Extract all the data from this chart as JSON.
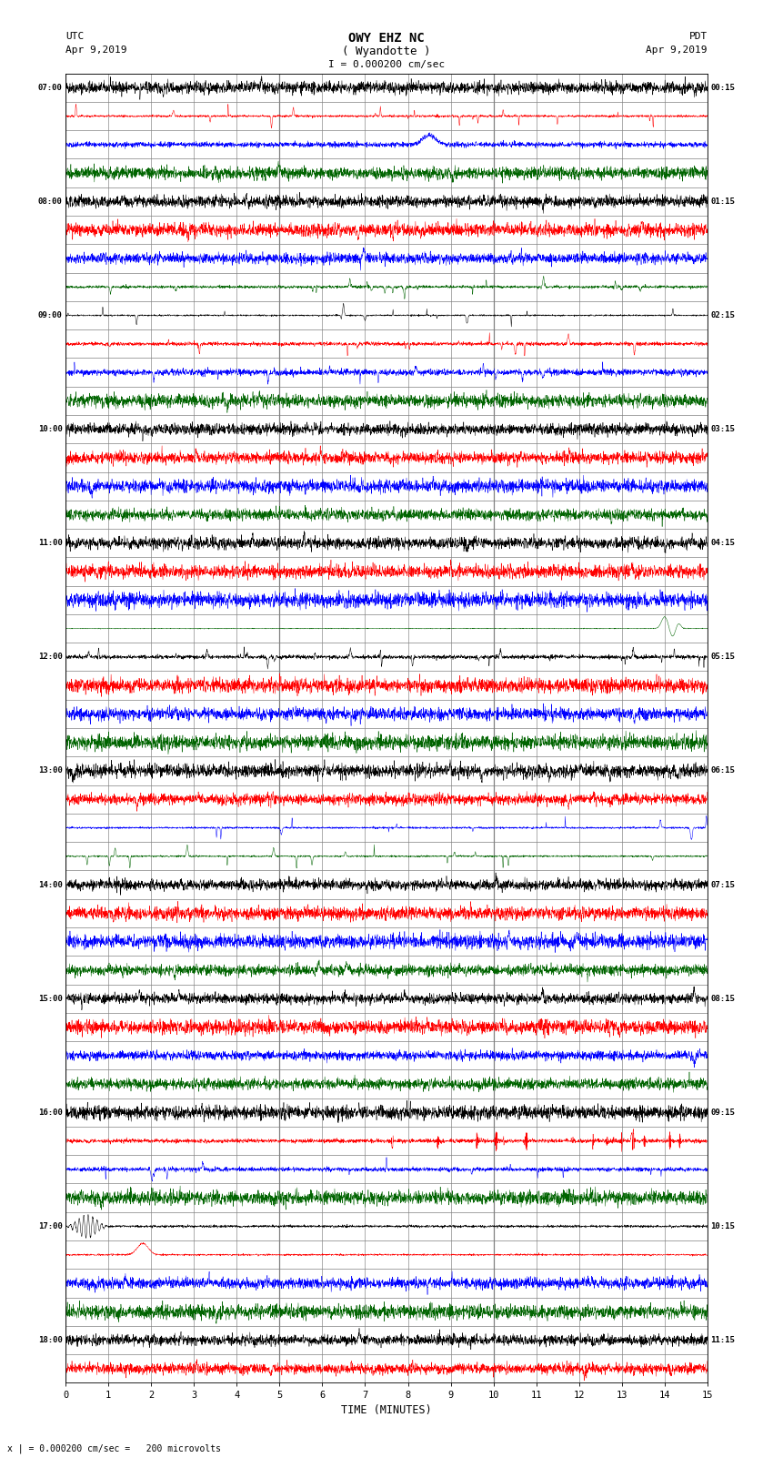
{
  "title_line1": "OWY EHZ NC",
  "title_line2": "( Wyandotte )",
  "scale_label": "I = 0.000200 cm/sec",
  "utc_label": "UTC",
  "utc_date": "Apr 9,2019",
  "pdt_label": "PDT",
  "pdt_date": "Apr 9,2019",
  "bottom_note": "x | = 0.000200 cm/sec =   200 microvolts",
  "xlabel": "TIME (MINUTES)",
  "bg_color": "#ffffff",
  "trace_colors": [
    "#000000",
    "#ff0000",
    "#0000ff",
    "#006400"
  ],
  "num_rows": 46,
  "minutes_per_row": 15,
  "grid_color": "#808080",
  "figsize": [
    8.5,
    16.13
  ],
  "dpi": 100,
  "left_times": [
    "07:00",
    "",
    "",
    "",
    "08:00",
    "",
    "",
    "",
    "09:00",
    "",
    "",
    "",
    "10:00",
    "",
    "",
    "",
    "11:00",
    "",
    "",
    "",
    "12:00",
    "",
    "",
    "",
    "13:00",
    "",
    "",
    "",
    "14:00",
    "",
    "",
    "",
    "15:00",
    "",
    "",
    "",
    "16:00",
    "",
    "",
    "",
    "17:00",
    "",
    "",
    "",
    "18:00",
    "",
    ""
  ],
  "left_times_full": [
    "07:00",
    "",
    "",
    "",
    "08:00",
    "",
    "",
    "",
    "09:00",
    "",
    "",
    "",
    "10:00",
    "",
    "",
    "",
    "11:00",
    "",
    "",
    "",
    "12:00",
    "",
    "",
    "",
    "13:00",
    "",
    "",
    "",
    "14:00",
    "",
    "",
    "",
    "15:00",
    "",
    "",
    "",
    "16:00",
    "",
    "",
    "",
    "17:00",
    "",
    "",
    "",
    "18:00",
    "",
    ""
  ],
  "right_times_full": [
    "00:15",
    "",
    "",
    "",
    "01:15",
    "",
    "",
    "",
    "02:15",
    "",
    "",
    "",
    "03:15",
    "",
    "",
    "",
    "04:15",
    "",
    "",
    "",
    "05:15",
    "",
    "",
    "",
    "06:15",
    "",
    "",
    "",
    "07:15",
    "",
    "",
    "",
    "08:15",
    "",
    "",
    "",
    "09:15",
    "",
    "",
    "",
    "10:15",
    "",
    "",
    "",
    "11:15",
    "",
    ""
  ]
}
